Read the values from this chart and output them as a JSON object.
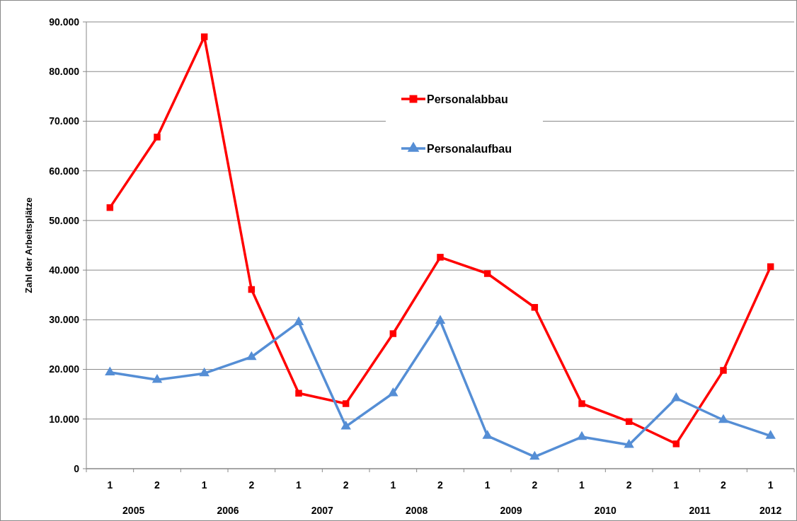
{
  "chart_data": {
    "type": "line",
    "ylabel": "Zahl der Arbeitsplätze",
    "categories": [
      "1",
      "2",
      "1",
      "2",
      "1",
      "2",
      "1",
      "2",
      "1",
      "2",
      "1",
      "2",
      "1",
      "2",
      "1"
    ],
    "annotations": [
      "2005",
      "2006",
      "2007",
      "2008",
      "2009",
      "2010",
      "2011",
      "2012"
    ],
    "series": [
      {
        "name": "Personalabbau",
        "color": "#ff0000",
        "marker": "square",
        "values": [
          52600,
          66800,
          87000,
          36100,
          15200,
          13100,
          27200,
          42600,
          39300,
          32500,
          13100,
          9500,
          5000,
          19800,
          40700
        ]
      },
      {
        "name": "Personalaufbau",
        "color": "#558ed5",
        "marker": "triangle",
        "values": [
          19400,
          17900,
          19200,
          22500,
          29500,
          8500,
          15200,
          29800,
          6600,
          2400,
          6400,
          4800,
          14200,
          9800,
          6600
        ]
      }
    ],
    "ylim": [
      0,
      90000
    ],
    "yticks": [
      0,
      {
        "value": 10000,
        "label": "10.000"
      },
      {
        "value": 20000,
        "label": "20.000"
      },
      {
        "value": 30000,
        "label": "30.000"
      },
      {
        "value": 40000,
        "label": "40.000"
      },
      {
        "value": 50000,
        "label": "50.000"
      },
      {
        "value": 60000,
        "label": "60.000"
      },
      {
        "value": 70000,
        "label": "70.000"
      },
      {
        "value": 80000,
        "label": "80.000"
      },
      {
        "value": 90000,
        "label": "90.000"
      }
    ],
    "grid": "y",
    "legend": "top",
    "line_style": "solid"
  }
}
